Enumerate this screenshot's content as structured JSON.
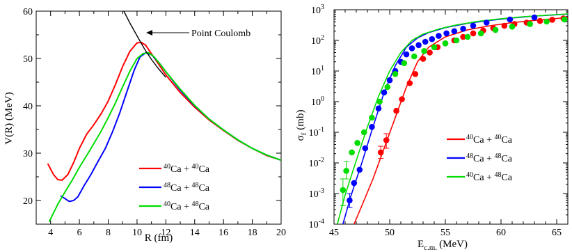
{
  "chart_data": [
    {
      "type": "line",
      "xlabel": "R (fm)",
      "ylabel": "V(R)  (MeV)",
      "xlim": [
        3,
        20
      ],
      "ylim": [
        15,
        60
      ],
      "xticks": [
        "4",
        "6",
        "8",
        "10",
        "12",
        "14",
        "16",
        "18",
        "20"
      ],
      "yticks": [
        "20",
        "30",
        "40",
        "50",
        "60"
      ],
      "legend_position": "bottom-right",
      "annotation": {
        "text": "Point Coulomb",
        "x": 10.8,
        "y": 55.3
      },
      "series": [
        {
          "name": "40Ca + 40Ca",
          "mass1": "40",
          "el1": "Ca",
          "mass2": "40",
          "el2": "Ca",
          "color": "#ff0000",
          "x": [
            3.8,
            4.2,
            4.5,
            4.8,
            5.2,
            5.6,
            6.0,
            6.5,
            7.0,
            7.5,
            8.0,
            8.5,
            9.0,
            9.5,
            10.0,
            10.3,
            10.6,
            11.0,
            11.5,
            12.0,
            13.0,
            14.0,
            15.0,
            16.0,
            17.0,
            18.0,
            19.0,
            20.0
          ],
          "y": [
            27.8,
            25.5,
            24.4,
            24.3,
            25.5,
            28.0,
            31.0,
            34.0,
            36.0,
            38.3,
            41.0,
            44.5,
            48.3,
            51.5,
            53.3,
            53.4,
            52.8,
            51.0,
            48.8,
            46.5,
            42.8,
            39.7,
            37.0,
            34.8,
            32.7,
            31.0,
            29.5,
            28.5
          ]
        },
        {
          "name": "48Ca + 48Ca",
          "mass1": "48",
          "el1": "Ca",
          "mass2": "48",
          "el2": "Ca",
          "color": "#0000ff",
          "x": [
            4.7,
            5.0,
            5.3,
            5.6,
            5.9,
            6.3,
            6.8,
            7.3,
            7.8,
            8.3,
            8.8,
            9.3,
            9.8,
            10.2,
            10.6,
            11.0,
            11.5,
            12.0,
            13.0,
            14.0,
            15.0,
            16.0,
            17.0,
            18.0,
            19.0,
            20.0
          ],
          "y": [
            21.0,
            20.4,
            19.8,
            20.0,
            20.8,
            23.0,
            25.5,
            28.3,
            31.0,
            34.5,
            38.5,
            43.0,
            47.5,
            50.3,
            51.2,
            50.8,
            49.2,
            47.2,
            43.3,
            40.0,
            37.2,
            34.9,
            32.8,
            31.0,
            29.6,
            28.5
          ]
        },
        {
          "name": "40Ca + 48Ca",
          "mass1": "40",
          "el1": "Ca",
          "mass2": "48",
          "el2": "Ca",
          "color": "#00dd00",
          "x": [
            3.9,
            4.5,
            5.0,
            5.5,
            6.0,
            6.5,
            7.0,
            7.5,
            8.0,
            8.5,
            9.0,
            9.5,
            10.0,
            10.4,
            10.8,
            11.2,
            11.6,
            12.0,
            13.0,
            14.0,
            15.0,
            16.0,
            17.0,
            18.0,
            19.0,
            20.0
          ],
          "y": [
            15.5,
            19.2,
            21.8,
            24.3,
            27.0,
            29.5,
            32.0,
            34.6,
            37.5,
            40.6,
            44.0,
            47.3,
            50.0,
            51.0,
            51.2,
            50.3,
            48.8,
            47.2,
            43.5,
            40.1,
            37.2,
            34.9,
            32.8,
            31.0,
            29.6,
            28.5
          ]
        },
        {
          "name": "Point Coulomb",
          "color": "#000000",
          "x": [
            9.0,
            9.5,
            10.0,
            10.5,
            11.0,
            11.5,
            12.0
          ],
          "y": [
            60.5,
            57.5,
            54.8,
            52.1,
            49.8,
            47.8,
            46.0
          ]
        }
      ]
    },
    {
      "type": "scatter",
      "xlabel_main": "E",
      "xlabel_sub": "c.m.",
      "xlabel_unit": "(MeV)",
      "ylabel_main": "σ",
      "ylabel_sub": "f",
      "ylabel_unit": "(mb)",
      "y_scale": "log",
      "xlim": [
        45,
        66
      ],
      "ylim": [
        0.0001,
        1000
      ],
      "xticks": [
        "45",
        "50",
        "55",
        "60",
        "65"
      ],
      "yticks": [
        {
          "base": "10",
          "exp": "-4"
        },
        {
          "base": "10",
          "exp": "-3"
        },
        {
          "base": "10",
          "exp": "-2"
        },
        {
          "base": "10",
          "exp": "-1"
        },
        {
          "base": "10",
          "exp": "0"
        },
        {
          "base": "10",
          "exp": "1"
        },
        {
          "base": "10",
          "exp": "2"
        },
        {
          "base": "10",
          "exp": "3"
        }
      ],
      "legend_position": "right-middle",
      "series": [
        {
          "name": "40Ca + 40Ca",
          "mass1": "40",
          "el1": "Ca",
          "mass2": "40",
          "el2": "Ca",
          "color": "#ff0000",
          "curve_x": [
            46.8,
            47.5,
            48.5,
            49.5,
            50.5,
            51.5,
            52.5,
            53.5,
            55.0,
            57.0,
            59.0,
            61.0,
            63.0,
            65.0,
            66.0
          ],
          "curve_y": [
            0.0001,
            0.0004,
            0.003,
            0.03,
            0.3,
            3,
            20,
            60,
            130,
            220,
            300,
            380,
            450,
            520,
            560
          ],
          "points_x": [
            49.2,
            49.7,
            50.6,
            51.1,
            51.8,
            52.3,
            53.0,
            53.6,
            54.3,
            55.0,
            55.8,
            56.6,
            57.5,
            58.4,
            59.3,
            60.3,
            61.2,
            62.3,
            63.5,
            64.6,
            65.6
          ],
          "points_y": [
            0.022,
            0.055,
            0.5,
            1.2,
            4,
            8,
            25,
            40,
            60,
            80,
            100,
            130,
            170,
            210,
            250,
            300,
            340,
            380,
            430,
            470,
            520
          ],
          "errors": [
            [
              49.2,
              0.014,
              0.035
            ],
            [
              49.7,
              0.03,
              0.09
            ]
          ]
        },
        {
          "name": "48Ca + 48Ca",
          "mass1": "48",
          "el1": "Ca",
          "mass2": "48",
          "el2": "Ca",
          "color": "#0000ff",
          "curve_x": [
            45.8,
            46.5,
            47.5,
            48.5,
            49.5,
            50.5,
            51.5,
            52.5,
            53.5,
            55.0,
            57.0,
            59.0,
            61.0,
            63.0,
            66.0
          ],
          "curve_y": [
            0.0001,
            0.0008,
            0.01,
            0.15,
            2,
            15,
            60,
            120,
            180,
            260,
            360,
            450,
            540,
            620,
            720
          ],
          "points_x": [
            46.4,
            46.8,
            47.3,
            47.8,
            48.4,
            49.0,
            49.5,
            50.0,
            50.5,
            51.0,
            51.5,
            52.0,
            52.6,
            53.2,
            53.8,
            54.4,
            55.1,
            55.8,
            56.6,
            57.5,
            58.7,
            60.8,
            63.0
          ],
          "points_y": [
            0.0006,
            0.0022,
            0.006,
            0.03,
            0.15,
            0.6,
            2,
            5,
            10,
            20,
            35,
            55,
            70,
            90,
            110,
            140,
            170,
            200,
            240,
            300,
            380,
            480,
            560
          ],
          "errors": [
            [
              46.4,
              0.00035,
              0.001
            ]
          ]
        },
        {
          "name": "40Ca + 48Ca",
          "mass1": "40",
          "el1": "Ca",
          "mass2": "48",
          "el2": "Ca",
          "color": "#00dd00",
          "curve_x": [
            45.3,
            46.0,
            47.0,
            48.0,
            49.0,
            50.0,
            51.0,
            52.0,
            53.0,
            54.5,
            56.0,
            58.0,
            60.0,
            62.0,
            64.0,
            66.0
          ],
          "curve_y": [
            0.0001,
            0.0009,
            0.012,
            0.15,
            1.5,
            10,
            40,
            100,
            160,
            240,
            320,
            420,
            510,
            590,
            660,
            730
          ],
          "points_x": [
            45.8,
            46.1,
            46.6,
            47.1,
            47.7,
            48.4,
            49.1,
            49.8,
            50.5,
            51.3,
            52.2,
            53.1,
            54.0,
            55.0,
            56.0,
            57.0,
            58.2,
            59.5,
            61.0,
            62.6,
            64.1,
            65.7
          ],
          "points_y": [
            0.0013,
            0.0055,
            0.022,
            0.045,
            0.1,
            0.3,
            1,
            3,
            8,
            18,
            30,
            45,
            60,
            80,
            100,
            130,
            170,
            220,
            280,
            340,
            410,
            480
          ],
          "errors": [
            [
              45.8,
              0.0004,
              0.003
            ],
            [
              46.1,
              0.003,
              0.011
            ]
          ]
        }
      ]
    }
  ]
}
